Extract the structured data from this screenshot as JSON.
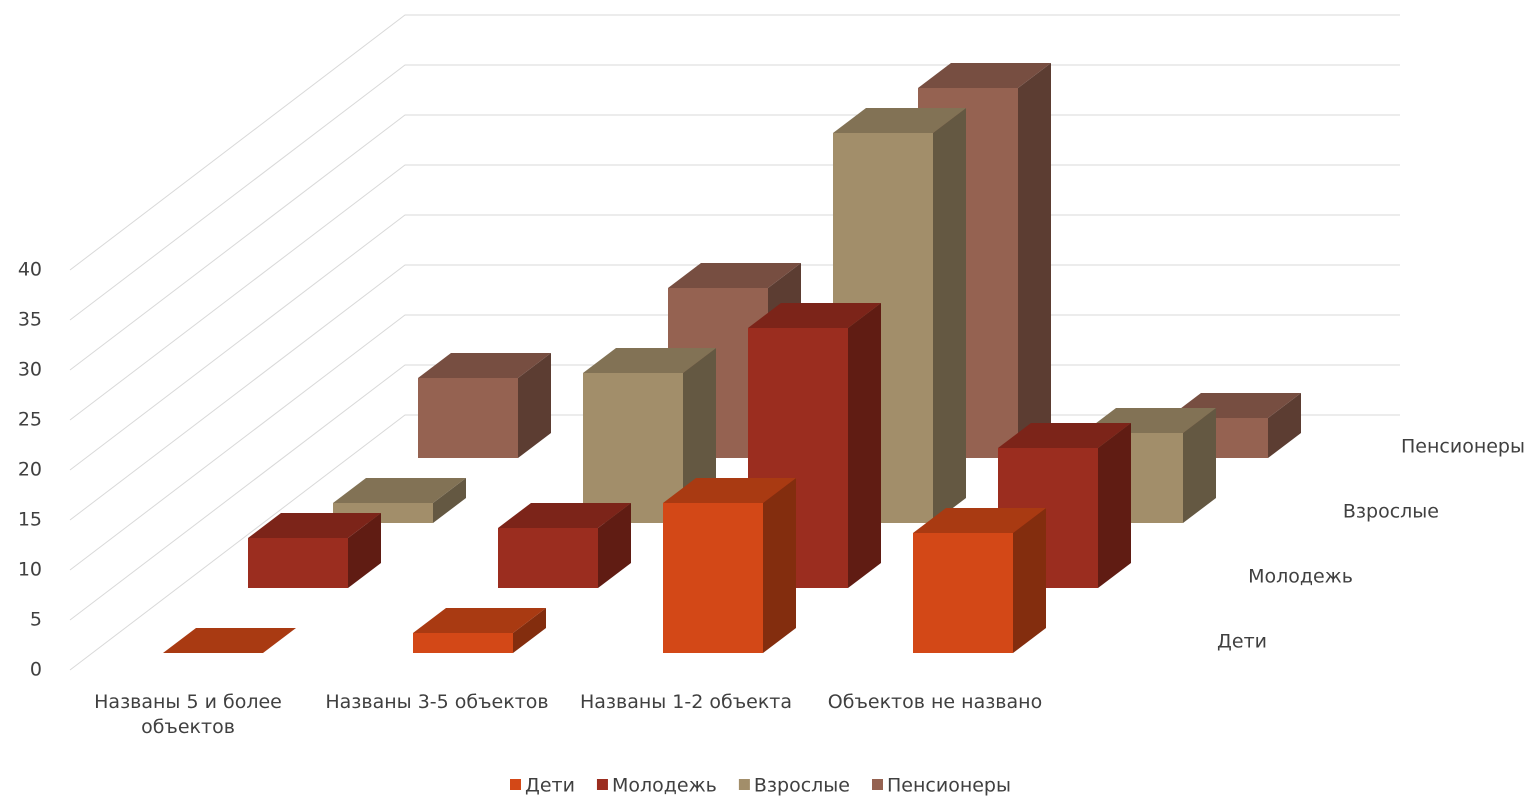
{
  "chart_data": {
    "type": "bar3d",
    "categories": [
      "Названы 5 и более объектов",
      "Названы 3-5 объектов",
      "Названы 1-2 объекта",
      "Объектов не названо"
    ],
    "series": [
      {
        "name": "Дети",
        "color": "#d34817",
        "values": [
          0,
          2,
          15,
          12
        ]
      },
      {
        "name": "Молодежь",
        "color": "#9b2d1f",
        "values": [
          5,
          6,
          26,
          14
        ]
      },
      {
        "name": "Взрослые",
        "color": "#a28e6a",
        "values": [
          2,
          15,
          39,
          9
        ]
      },
      {
        "name": "Пенсионеры",
        "color": "#956251",
        "values": [
          8,
          17,
          37,
          4
        ]
      }
    ],
    "ylim": [
      0,
      40
    ],
    "yticks": [
      0,
      5,
      10,
      15,
      20,
      25,
      30,
      35,
      40
    ],
    "grid": true,
    "legend": "bottom"
  }
}
